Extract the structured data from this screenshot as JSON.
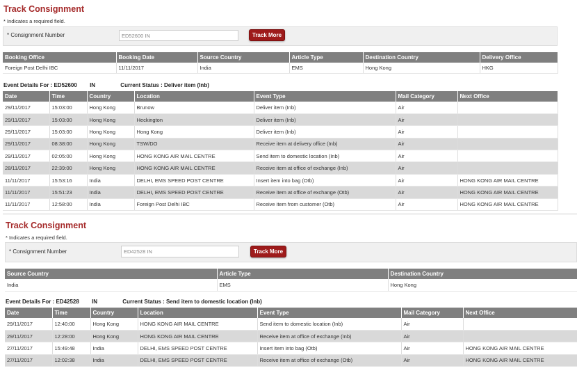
{
  "form": {
    "title": "Track Consignment",
    "required_note": "* Indicates a required field.",
    "label": "* Consignment Number",
    "button_label": "Track More"
  },
  "info_headers": [
    "Booking Office",
    "Booking Date",
    "Source Country",
    "Article Type",
    "Destination Country",
    "Delivery Office"
  ],
  "event_headers": [
    "Date",
    "Time",
    "Country",
    "Location",
    "Event Type",
    "Mail Category",
    "Next Office"
  ],
  "consignment1": {
    "number_value": "ED52600      IN",
    "info_row": [
      "Foreign Post Delhi IBC",
      "11/11/2017",
      "India",
      "EMS",
      "Hong Kong",
      "HKG"
    ],
    "event_details_label": "Event Details For : ED52600",
    "country_code": "IN",
    "status": "Current Status : Deliver item (Inb)",
    "events": [
      [
        "29/11/2017",
        "15:03:00",
        "Hong Kong",
        "Brunow",
        "Deliver item (Inb)",
        "Air",
        ""
      ],
      [
        "29/11/2017",
        "15:03:00",
        "Hong Kong",
        "Heckington",
        "Deliver item (Inb)",
        "Air",
        ""
      ],
      [
        "29/11/2017",
        "15:03:00",
        "Hong Kong",
        "Hong Kong",
        "Deliver item (Inb)",
        "Air",
        ""
      ],
      [
        "29/11/2017",
        "08:38:00",
        "Hong Kong",
        "TSW/DO",
        "Receive item at delivery office (Inb)",
        "Air",
        ""
      ],
      [
        "29/11/2017",
        "02:05:00",
        "Hong Kong",
        "HONG KONG AIR MAIL CENTRE",
        "Send item to domestic location (Inb)",
        "Air",
        ""
      ],
      [
        "28/11/2017",
        "22:39:00",
        "Hong Kong",
        "HONG KONG AIR MAIL CENTRE",
        "Receive item at office of exchange (Inb)",
        "Air",
        ""
      ],
      [
        "11/11/2017",
        "15:53:16",
        "India",
        "DELHI, EMS SPEED POST CENTRE",
        "Insert item into bag (Otb)",
        "Air",
        "HONG KONG AIR MAIL CENTRE"
      ],
      [
        "11/11/2017",
        "15:51:23",
        "India",
        "DELHI, EMS SPEED POST CENTRE",
        "Receive item at office of exchange (Otb)",
        "Air",
        "HONG KONG AIR MAIL CENTRE"
      ],
      [
        "11/11/2017",
        "12:58:00",
        "India",
        "Foreign Post Delhi IBC",
        "Receive item from customer (Otb)",
        "Air",
        "HONG KONG AIR MAIL CENTRE"
      ]
    ]
  },
  "consignment2": {
    "number_value": "ED42528      IN",
    "info_headers": [
      "Source Country",
      "Article Type",
      "Destination Country"
    ],
    "info_row": [
      "India",
      "EMS",
      "Hong Kong"
    ],
    "event_details_label": "Event Details For : ED42528",
    "country_code": "IN",
    "status": "Current Status : Send item to domestic location (Inb)",
    "events": [
      [
        "29/11/2017",
        "12:40:00",
        "Hong Kong",
        "HONG KONG AIR MAIL CENTRE",
        "Send item to domestic location (Inb)",
        "Air",
        ""
      ],
      [
        "29/11/2017",
        "12:28:00",
        "Hong Kong",
        "HONG KONG AIR MAIL CENTRE",
        "Receive item at office of exchange (Inb)",
        "Air",
        ""
      ],
      [
        "27/11/2017",
        "15:49:48",
        "India",
        "DELHI, EMS SPEED POST CENTRE",
        "Insert item into bag (Otb)",
        "Air",
        "HONG KONG AIR MAIL CENTRE"
      ],
      [
        "27/11/2017",
        "12:02:38",
        "India",
        "DELHI, EMS SPEED POST CENTRE",
        "Receive item at office of exchange (Otb)",
        "Air",
        "HONG KONG AIR MAIL CENTRE"
      ]
    ]
  }
}
